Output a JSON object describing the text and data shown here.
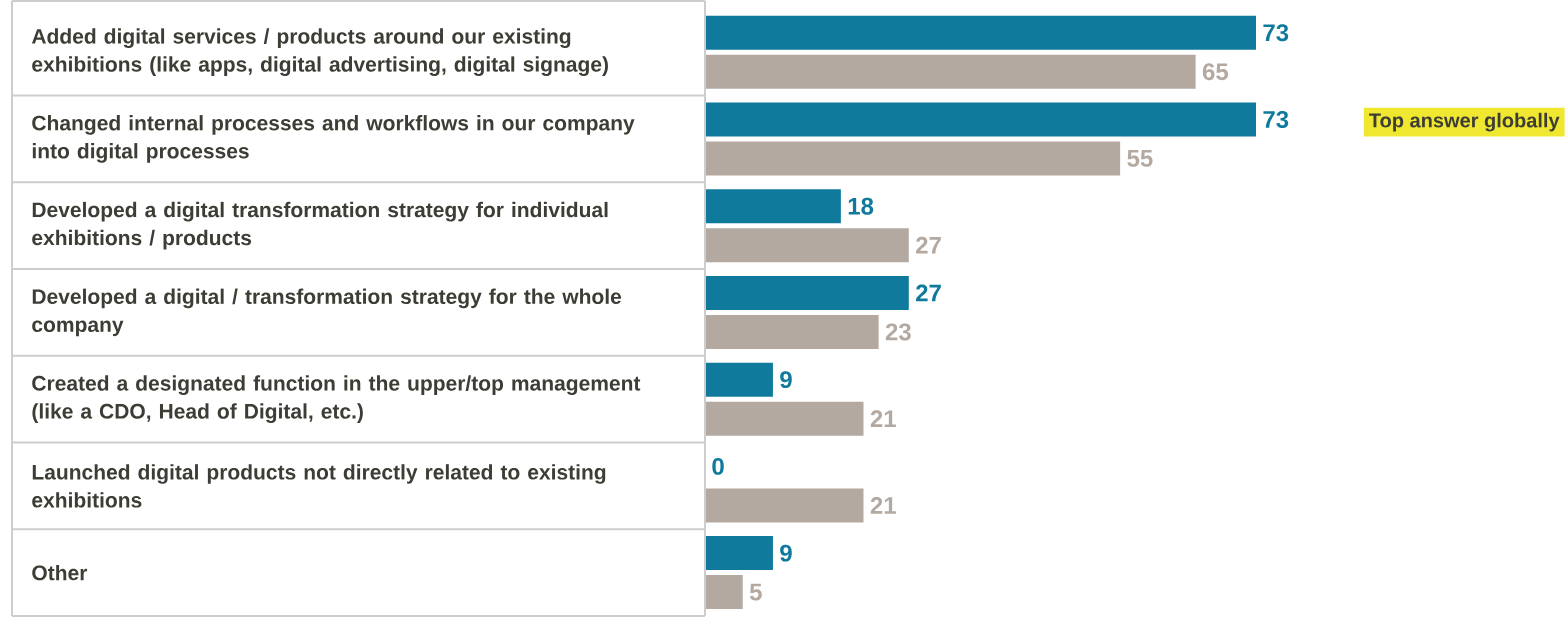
{
  "chart_data": {
    "type": "bar",
    "orientation": "horizontal",
    "categories": [
      "Added digital services / products around our existing exhibitions (like apps, digital advertising, digital signage)",
      "Changed internal processes and workflows in our company into digital processes",
      "Developed a digital transformation strategy for individual exhibitions / products",
      "Developed a digital / transformation strategy for the whole company",
      "Created a designated function in the upper/top management (like a CDO, Head of Digital, etc.)",
      "Launched digital products not directly related to existing exhibitions",
      "Other"
    ],
    "series": [
      {
        "color": "#0f7a9c",
        "values": [
          73,
          73,
          18,
          27,
          9,
          0,
          9
        ]
      },
      {
        "color": "#b3a9a0",
        "values": [
          65,
          55,
          27,
          23,
          21,
          21,
          5
        ]
      }
    ],
    "data_labels": true,
    "annotations": [
      "Top answer globally"
    ]
  }
}
